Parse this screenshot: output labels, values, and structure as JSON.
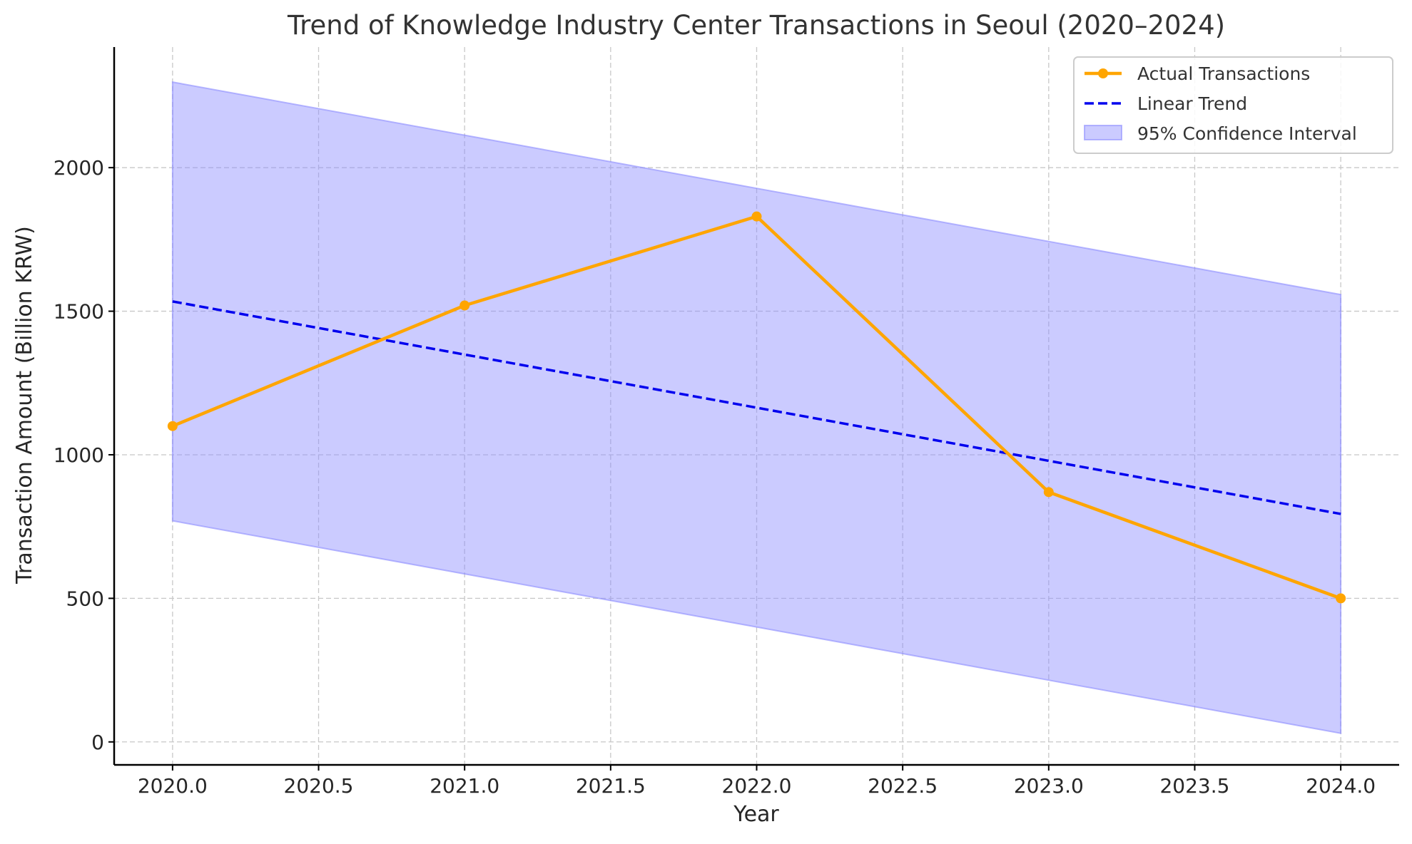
{
  "chart_data": {
    "type": "line",
    "title": "Trend of Knowledge Industry Center Transactions in Seoul (2020–2024)",
    "xlabel": "Year",
    "ylabel": "Transaction Amount (Billion KRW)",
    "xlim": [
      2019.8,
      2024.2
    ],
    "ylim": [
      -80,
      2420
    ],
    "xticks": [
      2020.0,
      2020.5,
      2021.0,
      2021.5,
      2022.0,
      2022.5,
      2023.0,
      2023.5,
      2024.0
    ],
    "xtick_labels": [
      "2020.0",
      "2020.5",
      "2021.0",
      "2021.5",
      "2022.0",
      "2022.5",
      "2023.0",
      "2023.5",
      "2024.0"
    ],
    "yticks": [
      0,
      500,
      1000,
      1500,
      2000
    ],
    "ytick_labels": [
      "0",
      "500",
      "1000",
      "1500",
      "2000"
    ],
    "grid": true,
    "legend_position": "top-right",
    "x": [
      2020,
      2021,
      2022,
      2023,
      2024
    ],
    "series": [
      {
        "name": "Actual Transactions",
        "kind": "line-marker",
        "color": "#FFA500",
        "values": [
          1100,
          1520,
          1830,
          870,
          500
        ]
      },
      {
        "name": "Linear Trend",
        "kind": "dashed-line",
        "color": "#0000EE",
        "values": [
          1534,
          1349,
          1164,
          979,
          794
        ]
      },
      {
        "name": "95% Confidence Interval",
        "kind": "band",
        "color": "#8C8CFF",
        "lower": [
          770,
          585,
          400,
          215,
          30
        ],
        "upper": [
          2298,
          2113,
          1928,
          1743,
          1558
        ]
      }
    ]
  }
}
